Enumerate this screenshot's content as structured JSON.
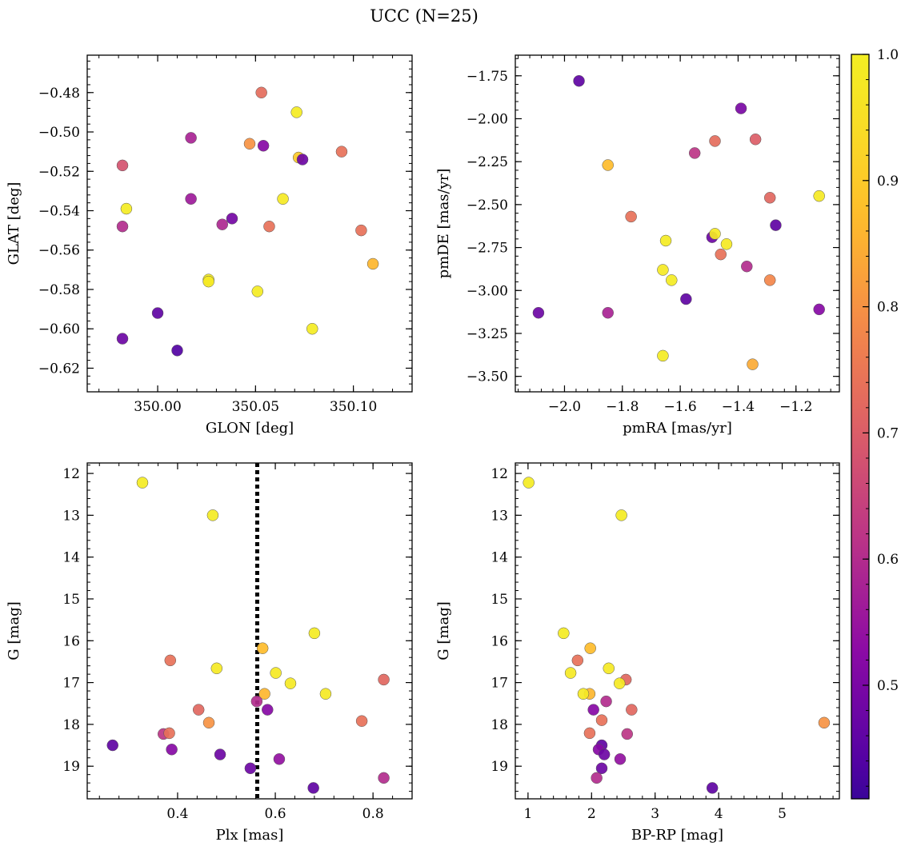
{
  "title": "UCC (N=25)",
  "colorbar": {
    "range": [
      0.41,
      1.0
    ],
    "ticks": [
      0.5,
      0.6,
      0.7,
      0.8,
      0.9,
      1.0
    ],
    "tick_labels": [
      "0.5",
      "0.6",
      "0.7",
      "0.8",
      "0.9",
      "1.0"
    ],
    "colormap": "plasma"
  },
  "chart_data": [
    {
      "type": "scatter",
      "panel": "top-left",
      "xlabel": "GLON [deg]",
      "ylabel": "GLAT [deg]",
      "xlim": [
        349.964,
        350.13
      ],
      "ylim": [
        -0.632,
        -0.461
      ],
      "y_inverted": false,
      "xticks": [
        350.0,
        350.05,
        350.1
      ],
      "xtick_labels": [
        "350.00",
        "350.05",
        "350.10"
      ],
      "yticks": [
        -0.48,
        -0.5,
        -0.52,
        -0.54,
        -0.56,
        -0.58,
        -0.6,
        -0.62
      ],
      "ytick_labels": [
        "−0.48",
        "−0.50",
        "−0.52",
        "−0.54",
        "−0.56",
        "−0.58",
        "−0.60",
        "−0.62"
      ],
      "points": [
        {
          "x": 350.053,
          "y": -0.48,
          "c": 0.73
        },
        {
          "x": 350.071,
          "y": -0.49,
          "c": 0.99
        },
        {
          "x": 350.017,
          "y": -0.503,
          "c": 0.58
        },
        {
          "x": 350.047,
          "y": -0.506,
          "c": 0.8
        },
        {
          "x": 350.054,
          "y": -0.507,
          "c": 0.52
        },
        {
          "x": 350.094,
          "y": -0.51,
          "c": 0.74
        },
        {
          "x": 350.072,
          "y": -0.513,
          "c": 0.9
        },
        {
          "x": 350.074,
          "y": -0.514,
          "c": 0.48
        },
        {
          "x": 349.982,
          "y": -0.517,
          "c": 0.68
        },
        {
          "x": 350.017,
          "y": -0.534,
          "c": 0.56
        },
        {
          "x": 350.064,
          "y": -0.534,
          "c": 0.98
        },
        {
          "x": 349.984,
          "y": -0.539,
          "c": 0.99
        },
        {
          "x": 350.038,
          "y": -0.544,
          "c": 0.49
        },
        {
          "x": 350.033,
          "y": -0.547,
          "c": 0.59
        },
        {
          "x": 349.982,
          "y": -0.548,
          "c": 0.6
        },
        {
          "x": 350.057,
          "y": -0.548,
          "c": 0.74
        },
        {
          "x": 350.104,
          "y": -0.55,
          "c": 0.74
        },
        {
          "x": 350.11,
          "y": -0.567,
          "c": 0.86
        },
        {
          "x": 350.026,
          "y": -0.575,
          "c": 0.99
        },
        {
          "x": 350.026,
          "y": -0.576,
          "c": 0.98
        },
        {
          "x": 350.051,
          "y": -0.581,
          "c": 0.99
        },
        {
          "x": 350.0,
          "y": -0.592,
          "c": 0.46
        },
        {
          "x": 350.079,
          "y": -0.6,
          "c": 0.99
        },
        {
          "x": 349.982,
          "y": -0.605,
          "c": 0.48
        },
        {
          "x": 350.01,
          "y": -0.611,
          "c": 0.44
        }
      ]
    },
    {
      "type": "scatter",
      "panel": "top-right",
      "xlabel": "pmRA [mas/yr]",
      "ylabel": "pmDE [mas/yr]",
      "xlim": [
        -2.17,
        -1.05
      ],
      "ylim": [
        -3.59,
        -1.63
      ],
      "y_inverted": false,
      "xticks": [
        -2.0,
        -1.8,
        -1.6,
        -1.4,
        -1.2
      ],
      "xtick_labels": [
        "−2.0",
        "−1.8",
        "−1.6",
        "−1.4",
        "−1.2"
      ],
      "yticks": [
        -1.75,
        -2.0,
        -2.25,
        -2.5,
        -2.75,
        -3.0,
        -3.25,
        -3.5
      ],
      "ytick_labels": [
        "−1.75",
        "−2.00",
        "−2.25",
        "−2.50",
        "−2.75",
        "−3.00",
        "−3.25",
        "−3.50"
      ],
      "points": [
        {
          "x": -1.95,
          "y": -1.78,
          "c": 0.46
        },
        {
          "x": -1.39,
          "y": -1.94,
          "c": 0.5
        },
        {
          "x": -1.55,
          "y": -2.2,
          "c": 0.62
        },
        {
          "x": -1.48,
          "y": -2.13,
          "c": 0.73
        },
        {
          "x": -1.34,
          "y": -2.12,
          "c": 0.7
        },
        {
          "x": -1.85,
          "y": -2.27,
          "c": 0.87
        },
        {
          "x": -1.29,
          "y": -2.46,
          "c": 0.72
        },
        {
          "x": -1.12,
          "y": -2.45,
          "c": 0.98
        },
        {
          "x": -1.77,
          "y": -2.57,
          "c": 0.74
        },
        {
          "x": -1.27,
          "y": -2.62,
          "c": 0.46
        },
        {
          "x": -1.49,
          "y": -2.69,
          "c": 0.48
        },
        {
          "x": -1.48,
          "y": -2.67,
          "c": 0.98
        },
        {
          "x": -1.65,
          "y": -2.71,
          "c": 0.99
        },
        {
          "x": -1.44,
          "y": -2.73,
          "c": 0.98
        },
        {
          "x": -1.46,
          "y": -2.79,
          "c": 0.74
        },
        {
          "x": -1.37,
          "y": -2.86,
          "c": 0.6
        },
        {
          "x": -1.66,
          "y": -2.88,
          "c": 0.98
        },
        {
          "x": -1.63,
          "y": -2.94,
          "c": 0.99
        },
        {
          "x": -1.29,
          "y": -2.94,
          "c": 0.78
        },
        {
          "x": -1.58,
          "y": -3.05,
          "c": 0.46
        },
        {
          "x": -2.09,
          "y": -3.13,
          "c": 0.48
        },
        {
          "x": -1.85,
          "y": -3.13,
          "c": 0.58
        },
        {
          "x": -1.12,
          "y": -3.11,
          "c": 0.52
        },
        {
          "x": -1.66,
          "y": -3.38,
          "c": 0.99
        },
        {
          "x": -1.35,
          "y": -3.43,
          "c": 0.84
        }
      ]
    },
    {
      "type": "scatter",
      "panel": "bottom-left",
      "xlabel": "Plx [mas]",
      "ylabel": "G [mag]",
      "xlim": [
        0.215,
        0.88
      ],
      "ylim": [
        19.78,
        11.75
      ],
      "y_inverted": true,
      "xticks": [
        0.4,
        0.6,
        0.8
      ],
      "xtick_labels": [
        "0.4",
        "0.6",
        "0.8"
      ],
      "yticks": [
        12,
        13,
        14,
        15,
        16,
        17,
        18,
        19
      ],
      "ytick_labels": [
        "12",
        "13",
        "14",
        "15",
        "16",
        "17",
        "18",
        "19"
      ],
      "vline": {
        "x": 0.563,
        "style": "dotted"
      },
      "points": [
        {
          "x": 0.328,
          "y": 12.22,
          "c": 0.99
        },
        {
          "x": 0.472,
          "y": 13.0,
          "c": 0.99
        },
        {
          "x": 0.68,
          "y": 15.82,
          "c": 0.99
        },
        {
          "x": 0.574,
          "y": 16.18,
          "c": 0.87
        },
        {
          "x": 0.385,
          "y": 16.47,
          "c": 0.74
        },
        {
          "x": 0.48,
          "y": 16.66,
          "c": 0.98
        },
        {
          "x": 0.601,
          "y": 16.77,
          "c": 0.98
        },
        {
          "x": 0.822,
          "y": 16.93,
          "c": 0.72
        },
        {
          "x": 0.631,
          "y": 17.02,
          "c": 0.98
        },
        {
          "x": 0.578,
          "y": 17.27,
          "c": 0.86
        },
        {
          "x": 0.703,
          "y": 17.27,
          "c": 0.98
        },
        {
          "x": 0.562,
          "y": 17.45,
          "c": 0.6
        },
        {
          "x": 0.443,
          "y": 17.65,
          "c": 0.72
        },
        {
          "x": 0.584,
          "y": 17.65,
          "c": 0.52
        },
        {
          "x": 0.777,
          "y": 17.92,
          "c": 0.74
        },
        {
          "x": 0.464,
          "y": 17.96,
          "c": 0.8
        },
        {
          "x": 0.371,
          "y": 18.23,
          "c": 0.62
        },
        {
          "x": 0.383,
          "y": 18.21,
          "c": 0.74
        },
        {
          "x": 0.267,
          "y": 18.5,
          "c": 0.46
        },
        {
          "x": 0.388,
          "y": 18.6,
          "c": 0.52
        },
        {
          "x": 0.487,
          "y": 18.72,
          "c": 0.48
        },
        {
          "x": 0.608,
          "y": 18.83,
          "c": 0.54
        },
        {
          "x": 0.549,
          "y": 19.05,
          "c": 0.48
        },
        {
          "x": 0.822,
          "y": 19.28,
          "c": 0.6
        },
        {
          "x": 0.678,
          "y": 19.52,
          "c": 0.46
        }
      ]
    },
    {
      "type": "scatter",
      "panel": "bottom-right",
      "xlabel": "BP-RP [mag]",
      "ylabel": "G [mag]",
      "xlim": [
        0.8,
        5.9
      ],
      "ylim": [
        19.78,
        11.75
      ],
      "y_inverted": true,
      "xticks": [
        1,
        2,
        3,
        4,
        5
      ],
      "xtick_labels": [
        "1",
        "2",
        "3",
        "4",
        "5"
      ],
      "yticks": [
        12,
        13,
        14,
        15,
        16,
        17,
        18,
        19
      ],
      "ytick_labels": [
        "12",
        "13",
        "14",
        "15",
        "16",
        "17",
        "18",
        "19"
      ],
      "points": [
        {
          "x": 1.01,
          "y": 12.22,
          "c": 0.99
        },
        {
          "x": 2.47,
          "y": 13.0,
          "c": 0.99
        },
        {
          "x": 1.56,
          "y": 15.82,
          "c": 0.99
        },
        {
          "x": 1.98,
          "y": 16.18,
          "c": 0.87
        },
        {
          "x": 1.78,
          "y": 16.47,
          "c": 0.74
        },
        {
          "x": 2.27,
          "y": 16.66,
          "c": 0.98
        },
        {
          "x": 1.67,
          "y": 16.77,
          "c": 0.98
        },
        {
          "x": 2.54,
          "y": 16.93,
          "c": 0.72
        },
        {
          "x": 2.44,
          "y": 17.02,
          "c": 0.98
        },
        {
          "x": 1.97,
          "y": 17.27,
          "c": 0.86
        },
        {
          "x": 1.87,
          "y": 17.27,
          "c": 0.98
        },
        {
          "x": 2.23,
          "y": 17.45,
          "c": 0.6
        },
        {
          "x": 2.03,
          "y": 17.65,
          "c": 0.52
        },
        {
          "x": 2.63,
          "y": 17.65,
          "c": 0.72
        },
        {
          "x": 2.16,
          "y": 17.9,
          "c": 0.74
        },
        {
          "x": 5.66,
          "y": 17.96,
          "c": 0.8
        },
        {
          "x": 1.97,
          "y": 18.21,
          "c": 0.74
        },
        {
          "x": 2.56,
          "y": 18.23,
          "c": 0.62
        },
        {
          "x": 2.16,
          "y": 18.5,
          "c": 0.46
        },
        {
          "x": 2.11,
          "y": 18.6,
          "c": 0.52
        },
        {
          "x": 2.2,
          "y": 18.72,
          "c": 0.48
        },
        {
          "x": 2.45,
          "y": 18.83,
          "c": 0.54
        },
        {
          "x": 2.16,
          "y": 19.05,
          "c": 0.48
        },
        {
          "x": 2.08,
          "y": 19.28,
          "c": 0.6
        },
        {
          "x": 3.9,
          "y": 19.52,
          "c": 0.46
        }
      ]
    }
  ]
}
